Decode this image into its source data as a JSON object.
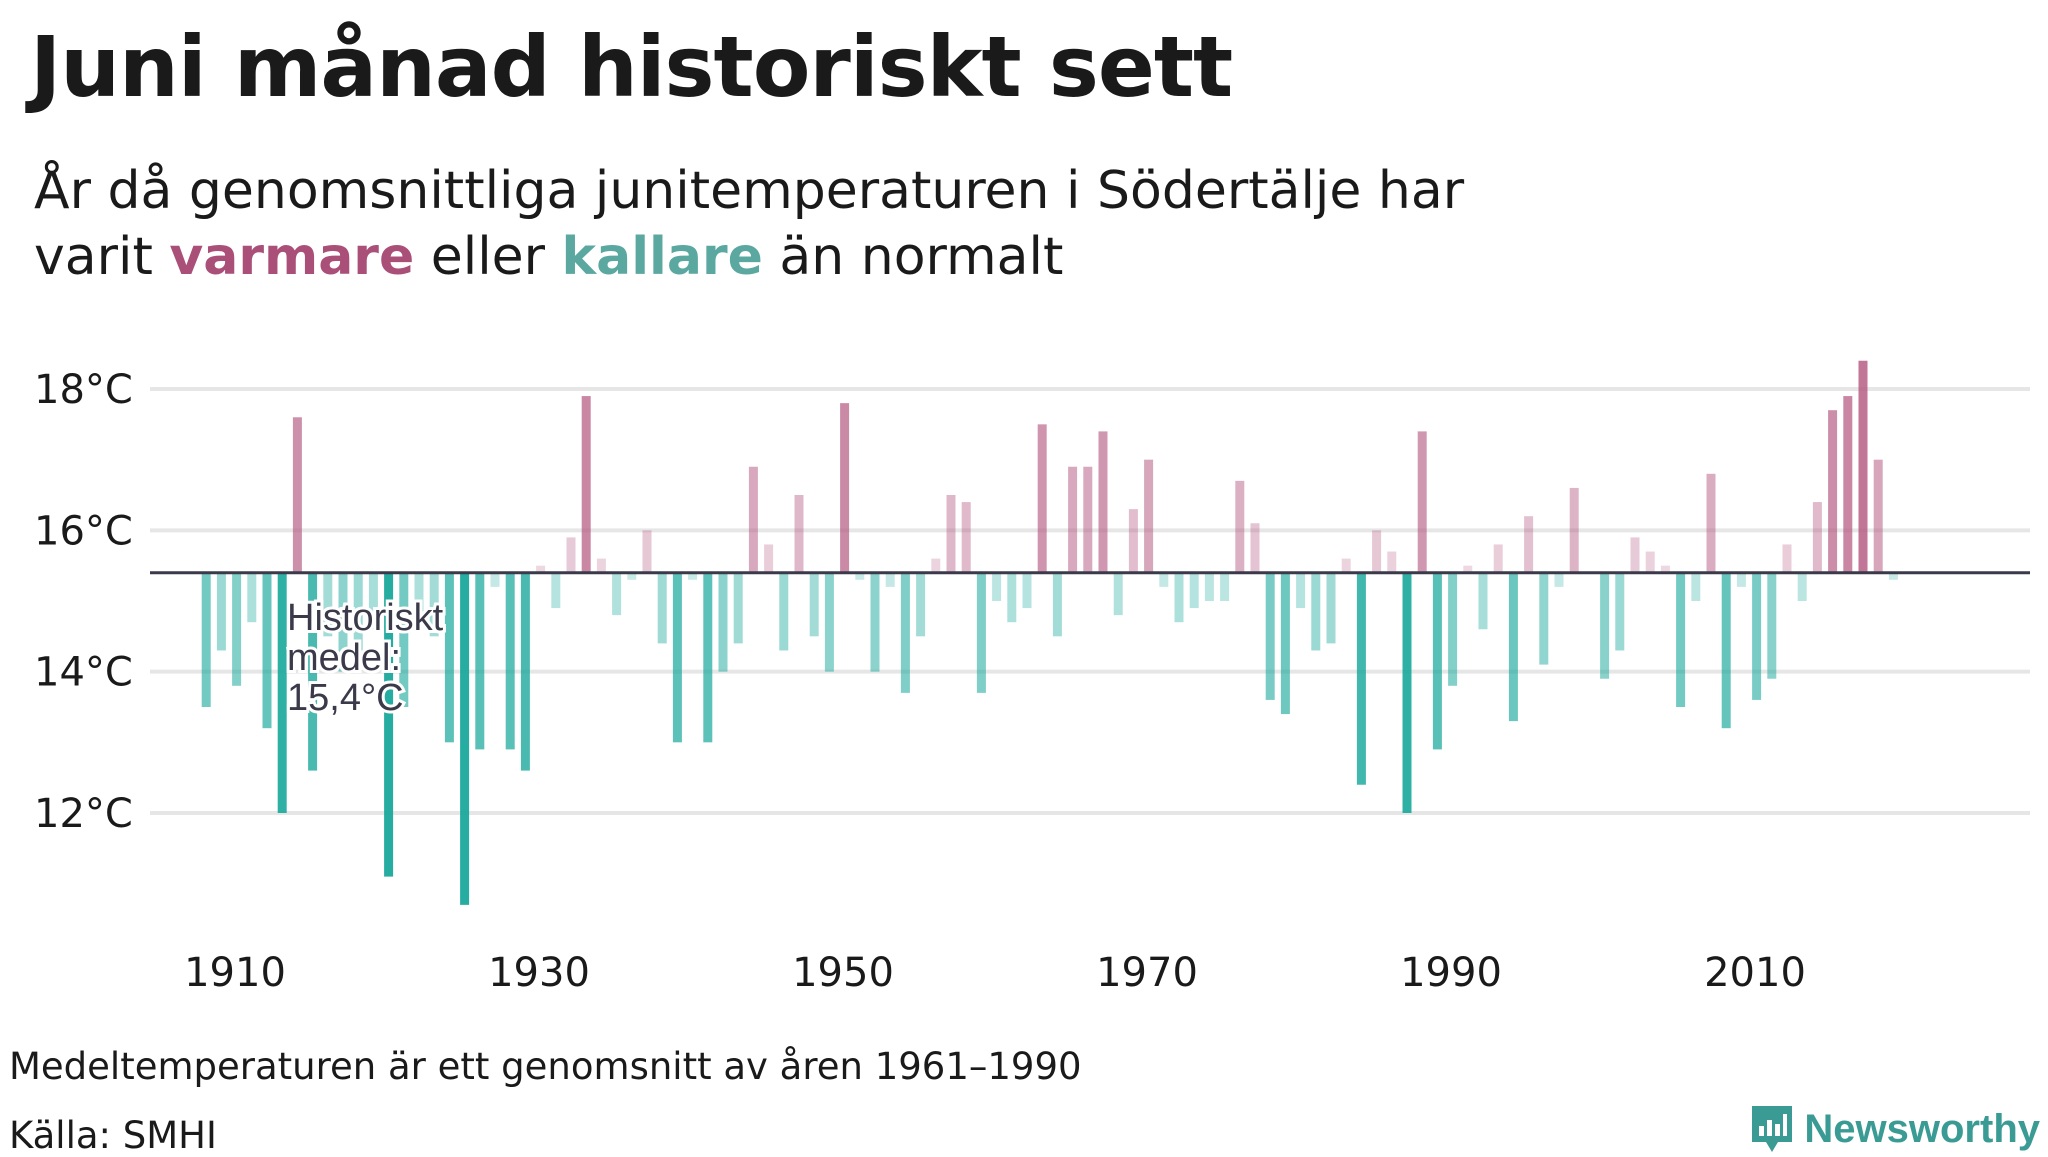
{
  "title": "Juni månad historiskt sett",
  "subtitle": {
    "line1": "År då genomsnittliga junitemperaturen i Södertälje har",
    "line2_prefix": "varit",
    "warm_word": "varmare",
    "middle": "eller",
    "cold_word": "kallare",
    "suffix": "än normalt"
  },
  "footer": {
    "note": "Medeltemperaturen är ett genomsnitt av åren 1961–1990",
    "source": "Källa: SMHI"
  },
  "brand": {
    "name": "Newsworthy",
    "icon": "newsworthy-logo-icon"
  },
  "colors": {
    "warm": "#c47a9a",
    "cold": "#3ab4a8",
    "baseline": "#3a3a4a",
    "grid": "#e6e6e6"
  },
  "chart_data": {
    "type": "bar",
    "baseline": 15.4,
    "baseline_label": [
      "Historiskt",
      "medel:",
      "15,4°C"
    ],
    "ylim": [
      10.5,
      19
    ],
    "yticks": [
      {
        "value": 12,
        "label": "12°C"
      },
      {
        "value": 14,
        "label": "14°C"
      },
      {
        "value": 16,
        "label": "16°C"
      },
      {
        "value": 18,
        "label": "18°C"
      }
    ],
    "xticks": [
      {
        "value": 1910,
        "label": "1910"
      },
      {
        "value": 1930,
        "label": "1930"
      },
      {
        "value": 1950,
        "label": "1950"
      },
      {
        "value": 1970,
        "label": "1970"
      },
      {
        "value": 1990,
        "label": "1990"
      },
      {
        "value": 2010,
        "label": "2010"
      }
    ],
    "xlim": [
      1900,
      2037
    ],
    "grid": true,
    "years": [
      1911,
      1912,
      1913,
      1914,
      1915,
      1916,
      1917,
      1918,
      1919,
      1920,
      1921,
      1922,
      1923,
      1924,
      1925,
      1926,
      1927,
      1928,
      1929,
      1930,
      1931,
      1932,
      1933,
      1934,
      1935,
      1936,
      1937,
      1938,
      1939,
      1940,
      1941,
      1942,
      1943,
      1944,
      1945,
      1946,
      1947,
      1948,
      1949,
      1950,
      1951,
      1952,
      1953,
      1954,
      1955,
      1956,
      1957,
      1958,
      1959,
      1960,
      1961,
      1962,
      1963,
      1964,
      1965,
      1966,
      1967,
      1968,
      1969,
      1970,
      1971,
      1972,
      1973,
      1974,
      1975,
      1976,
      1977,
      1978,
      1979,
      1980,
      1981,
      1982,
      1983,
      1984,
      1985,
      1986,
      1987,
      1988,
      1989,
      1990,
      1991,
      1992,
      1993,
      1994,
      1995,
      1996,
      1997,
      1998,
      1999,
      2000,
      2001,
      2002,
      2003,
      2004,
      2005,
      2006,
      2007,
      2008,
      2009,
      2010,
      2011,
      2012,
      2013,
      2014,
      2015,
      2016,
      2017,
      2018,
      2019,
      2020,
      2021,
      2022
    ],
    "values": [
      13.5,
      14.3,
      13.8,
      14.7,
      13.2,
      12.0,
      17.6,
      12.6,
      14.5,
      14.0,
      14.3,
      14.6,
      11.1,
      13.5,
      14.7,
      14.5,
      13.0,
      10.7,
      12.9,
      15.2,
      12.9,
      12.6,
      15.5,
      14.9,
      15.9,
      17.9,
      15.6,
      14.8,
      15.3,
      16.0,
      14.4,
      13.0,
      15.3,
      13.0,
      14.0,
      14.4,
      16.9,
      15.8,
      14.3,
      16.5,
      14.5,
      14.0,
      17.8,
      15.3,
      14.0,
      15.2,
      13.7,
      14.5,
      15.6,
      16.5,
      16.4,
      13.7,
      15.0,
      14.7,
      14.9,
      17.5,
      14.5,
      16.9,
      16.9,
      17.4,
      14.8,
      16.3,
      17.0,
      15.2,
      14.7,
      14.9,
      15.0,
      15.0,
      16.7,
      16.1,
      13.6,
      13.4,
      14.9,
      14.3,
      14.4,
      15.6,
      12.4,
      16.0,
      15.7,
      12.0,
      17.4,
      12.9,
      13.8,
      15.5,
      14.6,
      15.8,
      13.3,
      16.2,
      14.1,
      15.2,
      16.6,
      15.4,
      13.9,
      14.3,
      15.9,
      15.7,
      15.5,
      13.5,
      15.0,
      16.8,
      13.2,
      15.2,
      13.6,
      13.9,
      15.8,
      15.0,
      16.4,
      17.7,
      17.9,
      18.4,
      17.0,
      15.3
    ]
  }
}
